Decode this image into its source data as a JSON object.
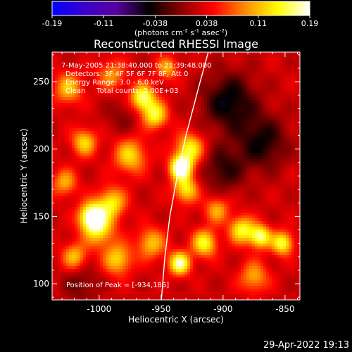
{
  "colorbar": {
    "ticks": [
      "-0.19",
      "-0.11",
      "-0.038",
      "0.038",
      "0.11",
      "0.19"
    ],
    "unit_main": "(photons cm",
    "unit_exp1": "-2",
    "unit_mid": " s",
    "unit_exp2": "-1",
    "unit_end": " asec",
    "unit_exp3": "-2",
    "unit_close": ")",
    "range": [
      -0.19,
      0.19
    ],
    "colormap": [
      "#0000ff",
      "#3a00cc",
      "#5a00a0",
      "#000000",
      "#8b0000",
      "#ff0000",
      "#ff8c00",
      "#ffff00",
      "#ffffff"
    ]
  },
  "chart_data": {
    "type": "heatmap",
    "title": "Reconstructed RHESSI Image",
    "xlabel": "Heliocentric X (arcsec)",
    "ylabel": "Heliocentric Y (arcsec)",
    "xlim": [
      -1038,
      -838
    ],
    "ylim": [
      88,
      272
    ],
    "xticks": [
      "-1000",
      "-950",
      "-900",
      "-850"
    ],
    "xtick_values": [
      -1000,
      -950,
      -900,
      -850
    ],
    "yticks": [
      "100",
      "150",
      "200",
      "250"
    ],
    "ytick_values": [
      100,
      150,
      200,
      250
    ],
    "annotations": [
      "7-May-2005 21:38:40.000 to 21:39:48.000",
      "Detectors: 3F 4F 5F 6F 7F 8F, Att 0",
      "Energy Range: 3.0 - 6.0 keV",
      "Clean     Total counts: 2.00E+03"
    ],
    "peak_label": "Position of Peak = [-934,186]",
    "peak": [
      -934,
      186
    ],
    "limb": [
      [
        -950,
        86
      ],
      [
        -947,
        120
      ],
      [
        -943,
        150
      ],
      [
        -937,
        180
      ],
      [
        -930,
        210
      ],
      [
        -920,
        245
      ],
      [
        -912,
        272
      ]
    ],
    "sources": [
      {
        "x": -934,
        "y": 186,
        "amp": 0.19,
        "s": 6
      },
      {
        "x": -927,
        "y": 200,
        "amp": 0.12,
        "s": 8
      },
      {
        "x": -930,
        "y": 170,
        "amp": 0.11,
        "s": 7
      },
      {
        "x": -1006,
        "y": 150,
        "amp": 0.17,
        "s": 7
      },
      {
        "x": -1000,
        "y": 140,
        "amp": 0.1,
        "s": 9
      },
      {
        "x": -990,
        "y": 160,
        "amp": 0.11,
        "s": 8
      },
      {
        "x": -965,
        "y": 238,
        "amp": 0.14,
        "s": 7
      },
      {
        "x": -955,
        "y": 225,
        "amp": 0.12,
        "s": 7
      },
      {
        "x": -975,
        "y": 195,
        "amp": 0.1,
        "s": 9
      },
      {
        "x": -1012,
        "y": 205,
        "amp": 0.1,
        "s": 7
      },
      {
        "x": -1025,
        "y": 245,
        "amp": 0.09,
        "s": 8
      },
      {
        "x": -1020,
        "y": 120,
        "amp": 0.09,
        "s": 7
      },
      {
        "x": -985,
        "y": 118,
        "amp": 0.1,
        "s": 8
      },
      {
        "x": -958,
        "y": 130,
        "amp": 0.09,
        "s": 8
      },
      {
        "x": -935,
        "y": 115,
        "amp": 0.15,
        "s": 6
      },
      {
        "x": -915,
        "y": 130,
        "amp": 0.12,
        "s": 7
      },
      {
        "x": -905,
        "y": 155,
        "amp": 0.08,
        "s": 7
      },
      {
        "x": -885,
        "y": 140,
        "amp": 0.12,
        "s": 7
      },
      {
        "x": -870,
        "y": 135,
        "amp": 0.14,
        "s": 6
      },
      {
        "x": -852,
        "y": 130,
        "amp": 0.13,
        "s": 6
      },
      {
        "x": -875,
        "y": 105,
        "amp": 0.08,
        "s": 8
      },
      {
        "x": -990,
        "y": 255,
        "amp": 0.07,
        "s": 8
      },
      {
        "x": -945,
        "y": 260,
        "amp": 0.08,
        "s": 6
      },
      {
        "x": -1028,
        "y": 175,
        "amp": 0.08,
        "s": 7
      },
      {
        "x": -895,
        "y": 235,
        "amp": -0.08,
        "s": 15
      },
      {
        "x": -868,
        "y": 205,
        "amp": -0.07,
        "s": 14
      },
      {
        "x": -900,
        "y": 185,
        "amp": -0.06,
        "s": 12
      },
      {
        "x": -980,
        "y": 225,
        "amp": -0.03,
        "s": 10
      },
      {
        "x": -1015,
        "y": 100,
        "amp": -0.04,
        "s": 10
      }
    ]
  },
  "timestamp": "29-Apr-2022 19:13"
}
